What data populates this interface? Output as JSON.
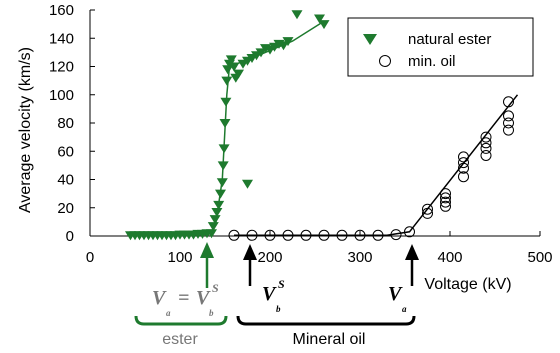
{
  "chart_data": {
    "type": "scatter",
    "xlabel": "Voltage (kV)",
    "ylabel": "Average velocity (km/s)",
    "xlim": [
      0,
      500
    ],
    "ylim": [
      0,
      160
    ],
    "xticks": [
      "0",
      "100",
      "200",
      "300",
      "400",
      "500"
    ],
    "yticks": [
      "0",
      "20",
      "40",
      "60",
      "80",
      "100",
      "120",
      "140",
      "160"
    ],
    "grid": false,
    "legend_position": "top-right",
    "colors": {
      "ester": "#1e7a2e",
      "oil": "#000000"
    },
    "series": [
      {
        "name": "natural ester",
        "marker": "filled-triangle-down",
        "points": [
          [
            45,
            0.5
          ],
          [
            50,
            0.5
          ],
          [
            55,
            0.5
          ],
          [
            60,
            0.5
          ],
          [
            65,
            0.5
          ],
          [
            70,
            0.5
          ],
          [
            75,
            0.5
          ],
          [
            80,
            0.5
          ],
          [
            85,
            0.5
          ],
          [
            90,
            0.5
          ],
          [
            95,
            0.5
          ],
          [
            100,
            1
          ],
          [
            105,
            1
          ],
          [
            110,
            1
          ],
          [
            115,
            1
          ],
          [
            120,
            1.5
          ],
          [
            125,
            1.5
          ],
          [
            130,
            2
          ],
          [
            135,
            2
          ],
          [
            137,
            7
          ],
          [
            139,
            12
          ],
          [
            141,
            17
          ],
          [
            143,
            22
          ],
          [
            145,
            30
          ],
          [
            147,
            38
          ],
          [
            148,
            50
          ],
          [
            149,
            62
          ],
          [
            150,
            80
          ],
          [
            151,
            95
          ],
          [
            152,
            110
          ],
          [
            153,
            118
          ],
          [
            155,
            122
          ],
          [
            157,
            125
          ],
          [
            160,
            120
          ],
          [
            162,
            112
          ],
          [
            165,
            115
          ],
          [
            170,
            122
          ],
          [
            175,
            124
          ],
          [
            180,
            126
          ],
          [
            185,
            128
          ],
          [
            190,
            130
          ],
          [
            195,
            133
          ],
          [
            200,
            132
          ],
          [
            205,
            134
          ],
          [
            210,
            136
          ],
          [
            215,
            135
          ],
          [
            220,
            138
          ],
          [
            230,
            157
          ],
          [
            255,
            154
          ],
          [
            260,
            150
          ],
          [
            175,
            37
          ]
        ],
        "fit": [
          [
            45,
            0.5
          ],
          [
            135,
            2
          ],
          [
            140,
            10
          ],
          [
            147,
            40
          ],
          [
            152,
            100
          ],
          [
            155,
            120
          ],
          [
            180,
            126
          ],
          [
            225,
            138
          ],
          [
            260,
            152
          ]
        ]
      },
      {
        "name": "min. oil",
        "marker": "open-circle",
        "points": [
          [
            160,
            0.5
          ],
          [
            180,
            0.5
          ],
          [
            200,
            0.5
          ],
          [
            220,
            0.5
          ],
          [
            240,
            0.5
          ],
          [
            260,
            0.5
          ],
          [
            280,
            0.5
          ],
          [
            300,
            0.5
          ],
          [
            320,
            0.5
          ],
          [
            340,
            1
          ],
          [
            355,
            3
          ],
          [
            375,
            16
          ],
          [
            375,
            19
          ],
          [
            395,
            21
          ],
          [
            395,
            24
          ],
          [
            395,
            27
          ],
          [
            395,
            30
          ],
          [
            415,
            42
          ],
          [
            415,
            48
          ],
          [
            415,
            52
          ],
          [
            415,
            56
          ],
          [
            440,
            57
          ],
          [
            440,
            62
          ],
          [
            440,
            66
          ],
          [
            440,
            70
          ],
          [
            465,
            75
          ],
          [
            465,
            80
          ],
          [
            465,
            85
          ],
          [
            465,
            95
          ]
        ],
        "fit": [
          [
            160,
            0.5
          ],
          [
            330,
            0.5
          ],
          [
            355,
            3
          ],
          [
            475,
            100
          ]
        ]
      }
    ],
    "annotations": {
      "ester_threshold": {
        "x": 125,
        "label": "V",
        "sub_a": "a",
        "equals": "=",
        "label2": "V",
        "sup": "S",
        "sub_b": "b"
      },
      "oil_initiation": {
        "x": 170,
        "label": "V",
        "sup": "S",
        "sub": "b"
      },
      "oil_acceleration": {
        "x": 355,
        "label": "V",
        "sub": "a"
      },
      "ester_group_label": "ester",
      "oil_group_label": "Mineral oil"
    }
  }
}
